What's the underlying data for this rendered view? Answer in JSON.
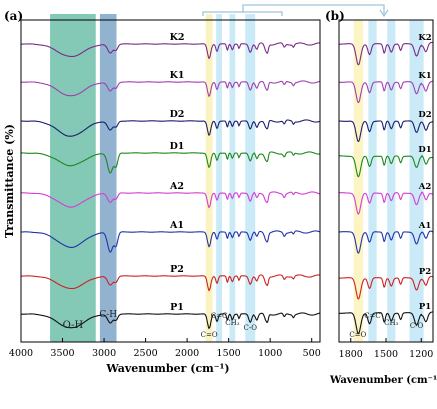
{
  "chart_data": [
    {
      "panel": "(a)",
      "type": "line",
      "xlabel": "Wavenumber (cm⁻¹)",
      "ylabel": "Transmittance (%)",
      "xlim": [
        4000,
        400
      ],
      "x_ticks": [
        4000,
        3500,
        3000,
        2500,
        2000,
        1500,
        1000,
        500
      ],
      "band_labels": [
        "O-H",
        "C-H",
        "C=O",
        "C=C",
        "CH₃",
        "C-O"
      ],
      "bands": [
        {
          "label": "O-H",
          "from": 3650,
          "to": 3100,
          "color": "#6fbfa8"
        },
        {
          "label": "C-H",
          "from": 3050,
          "to": 2850,
          "color": "#7fa6c8"
        },
        {
          "label": "C=O",
          "from": 1775,
          "to": 1695,
          "color": "#fbf2b8"
        },
        {
          "label": "C=C",
          "from": 1650,
          "to": 1580,
          "color": "#bfe6f4"
        },
        {
          "label": "CH₃",
          "from": 1490,
          "to": 1420,
          "color": "#bfe6f4"
        },
        {
          "label": "C-O",
          "from": 1300,
          "to": 1180,
          "color": "#bfe6f4"
        }
      ],
      "series": [
        {
          "name": "K2",
          "color": "#7a2a8a"
        },
        {
          "name": "K1",
          "color": "#a03fb0"
        },
        {
          "name": "D2",
          "color": "#1c1e6e"
        },
        {
          "name": "D1",
          "color": "#1a8a1a"
        },
        {
          "name": "A2",
          "color": "#d43cd4"
        },
        {
          "name": "A1",
          "color": "#2233aa"
        },
        {
          "name": "P2",
          "color": "#cc2222"
        },
        {
          "name": "P1",
          "color": "#111111"
        }
      ]
    },
    {
      "panel": "(b)",
      "type": "line",
      "xlabel": "Wavenumber (cm⁻¹)",
      "xlim": [
        1900,
        1100
      ],
      "x_ticks": [
        1800,
        1500,
        1200
      ],
      "band_labels": [
        "C=O",
        "C=C",
        "CH₃",
        "C-O"
      ],
      "series_names": [
        "K2",
        "K1",
        "D2",
        "D1",
        "A2",
        "A1",
        "P2",
        "P1"
      ]
    }
  ]
}
